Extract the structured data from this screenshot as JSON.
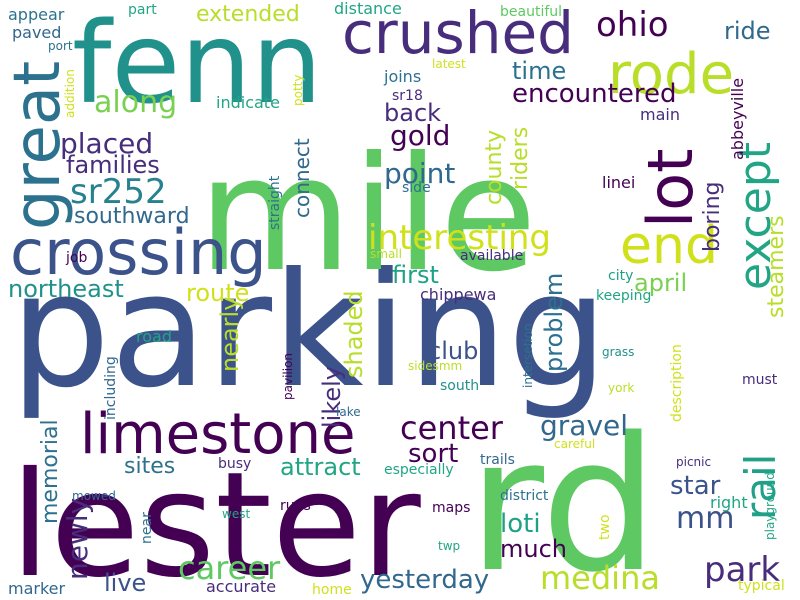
{
  "palette": [
    "#440154",
    "#482878",
    "#3e4989",
    "#31688e",
    "#26828e",
    "#1f9e89",
    "#35b779",
    "#6ece58",
    "#b5de2b",
    "#fde725"
  ],
  "words": [
    {
      "text": "parking",
      "color": "#3b528b"
    },
    {
      "text": "mile",
      "color": "#5ec962"
    },
    {
      "text": "lester",
      "color": "#440154"
    },
    {
      "text": "rd",
      "color": "#5ec962"
    },
    {
      "text": "fenn",
      "color": "#21918c"
    },
    {
      "text": "crossing",
      "color": "#3b528b"
    },
    {
      "text": "crushed",
      "color": "#472d7b"
    },
    {
      "text": "great",
      "color": "#2c728e"
    },
    {
      "text": "rode",
      "color": "#b8de29"
    },
    {
      "text": "lot",
      "color": "#440154"
    },
    {
      "text": "limestone",
      "color": "#440154"
    },
    {
      "text": "end",
      "color": "#d0e11c"
    },
    {
      "text": "except",
      "color": "#21a585"
    },
    {
      "text": "ohio",
      "color": "#440154"
    },
    {
      "text": "interesting",
      "color": "#d0e11c"
    },
    {
      "text": "along",
      "color": "#7ad151"
    },
    {
      "text": "sr252",
      "color": "#26828e"
    },
    {
      "text": "medina",
      "color": "#b8de29"
    },
    {
      "text": "park",
      "color": "#472d7b"
    },
    {
      "text": "career",
      "color": "#5ec962"
    },
    {
      "text": "center",
      "color": "#440154"
    },
    {
      "text": "rail",
      "color": "#1fa187"
    },
    {
      "text": "yesterday",
      "color": "#31688e"
    },
    {
      "text": "encountered",
      "color": "#440154"
    },
    {
      "text": "placed",
      "color": "#472d7b"
    },
    {
      "text": "point",
      "color": "#31688e"
    },
    {
      "text": "gravel",
      "color": "#31688e"
    },
    {
      "text": "mm",
      "color": "#3b528b"
    },
    {
      "text": "gold",
      "color": "#440154"
    },
    {
      "text": "back",
      "color": "#472d7b"
    },
    {
      "text": "time",
      "color": "#2c728e"
    },
    {
      "text": "ride",
      "color": "#31688e"
    },
    {
      "text": "first",
      "color": "#1fa187"
    },
    {
      "text": "northeast",
      "color": "#21918c"
    },
    {
      "text": "club",
      "color": "#3b528b"
    },
    {
      "text": "sort",
      "color": "#440154"
    },
    {
      "text": "star",
      "color": "#3b528b"
    },
    {
      "text": "loti",
      "color": "#1fa187"
    },
    {
      "text": "much",
      "color": "#440154"
    },
    {
      "text": "families",
      "color": "#472d7b"
    },
    {
      "text": "southward",
      "color": "#31688e"
    },
    {
      "text": "extended",
      "color": "#b8de29"
    },
    {
      "text": "april",
      "color": "#7ad151"
    },
    {
      "text": "route",
      "color": "#d0e11c"
    },
    {
      "text": "attract",
      "color": "#21a585"
    },
    {
      "text": "sites",
      "color": "#2c728e"
    },
    {
      "text": "live",
      "color": "#3b528b"
    },
    {
      "text": "newly",
      "color": "#472d7b"
    },
    {
      "text": "nearly",
      "color": "#b8de29"
    },
    {
      "text": "shaded",
      "color": "#b8de29"
    },
    {
      "text": "likely",
      "color": "#472d7b"
    },
    {
      "text": "problem",
      "color": "#2c728e"
    },
    {
      "text": "riders",
      "color": "#b8de29"
    },
    {
      "text": "county",
      "color": "#b8de29"
    },
    {
      "text": "boring",
      "color": "#472d7b"
    },
    {
      "text": "steamers",
      "color": "#b8de29"
    },
    {
      "text": "memorial",
      "color": "#2c728e"
    },
    {
      "text": "connect",
      "color": "#31688e"
    },
    {
      "text": "indicate",
      "color": "#21a585"
    },
    {
      "text": "joins",
      "color": "#2c728e"
    },
    {
      "text": "sr18",
      "color": "#472d7b"
    },
    {
      "text": "appear",
      "color": "#2c728e"
    },
    {
      "text": "paved",
      "color": "#31688e"
    },
    {
      "text": "part",
      "color": "#21a585"
    },
    {
      "text": "distance",
      "color": "#21a585"
    },
    {
      "text": "beautiful",
      "color": "#5ec962"
    },
    {
      "text": "port",
      "color": "#2c728e"
    },
    {
      "text": "addition",
      "color": "#d0e11c"
    },
    {
      "text": "potty",
      "color": "#d0e11c"
    },
    {
      "text": "latest",
      "color": "#d0e11c"
    },
    {
      "text": "main",
      "color": "#472d7b"
    },
    {
      "text": "abbeyville",
      "color": "#440154"
    },
    {
      "text": "linei",
      "color": "#440154"
    },
    {
      "text": "straight",
      "color": "#2c728e"
    },
    {
      "text": "side",
      "color": "#2c728e"
    },
    {
      "text": "job",
      "color": "#440154"
    },
    {
      "text": "small",
      "color": "#b8de29"
    },
    {
      "text": "available",
      "color": "#472d7b"
    },
    {
      "text": "city",
      "color": "#1fa187"
    },
    {
      "text": "keeping",
      "color": "#21a585"
    },
    {
      "text": "chippewa",
      "color": "#472d7b"
    },
    {
      "text": "road",
      "color": "#21a585"
    },
    {
      "text": "including",
      "color": "#31688e"
    },
    {
      "text": "pavilion",
      "color": "#440154"
    },
    {
      "text": "sidesmm",
      "color": "#b8de29"
    },
    {
      "text": "south",
      "color": "#21918c"
    },
    {
      "text": "intersetion",
      "color": "#2c728e"
    },
    {
      "text": "grass",
      "color": "#21918c"
    },
    {
      "text": "description",
      "color": "#d0e11c"
    },
    {
      "text": "york",
      "color": "#b8de29"
    },
    {
      "text": "must",
      "color": "#472d7b"
    },
    {
      "text": "lake",
      "color": "#31688e"
    },
    {
      "text": "careful",
      "color": "#d0e11c"
    },
    {
      "text": "especially",
      "color": "#21a585"
    },
    {
      "text": "busy",
      "color": "#472d7b"
    },
    {
      "text": "trails",
      "color": "#31688e"
    },
    {
      "text": "district",
      "color": "#2c728e"
    },
    {
      "text": "picnic",
      "color": "#472d7b"
    },
    {
      "text": "right",
      "color": "#21a585"
    },
    {
      "text": "playground",
      "color": "#21a585"
    },
    {
      "text": "mowed",
      "color": "#31688e"
    },
    {
      "text": "west",
      "color": "#21a585"
    },
    {
      "text": "runs",
      "color": "#440154"
    },
    {
      "text": "maps",
      "color": "#440154"
    },
    {
      "text": "two",
      "color": "#d0e11c"
    },
    {
      "text": "near",
      "color": "#2c728e"
    },
    {
      "text": "twp",
      "color": "#21a585"
    },
    {
      "text": "marker",
      "color": "#31688e"
    },
    {
      "text": "accurate",
      "color": "#472d7b"
    },
    {
      "text": "home",
      "color": "#d0e11c"
    },
    {
      "text": "typical",
      "color": "#d0e11c"
    }
  ]
}
